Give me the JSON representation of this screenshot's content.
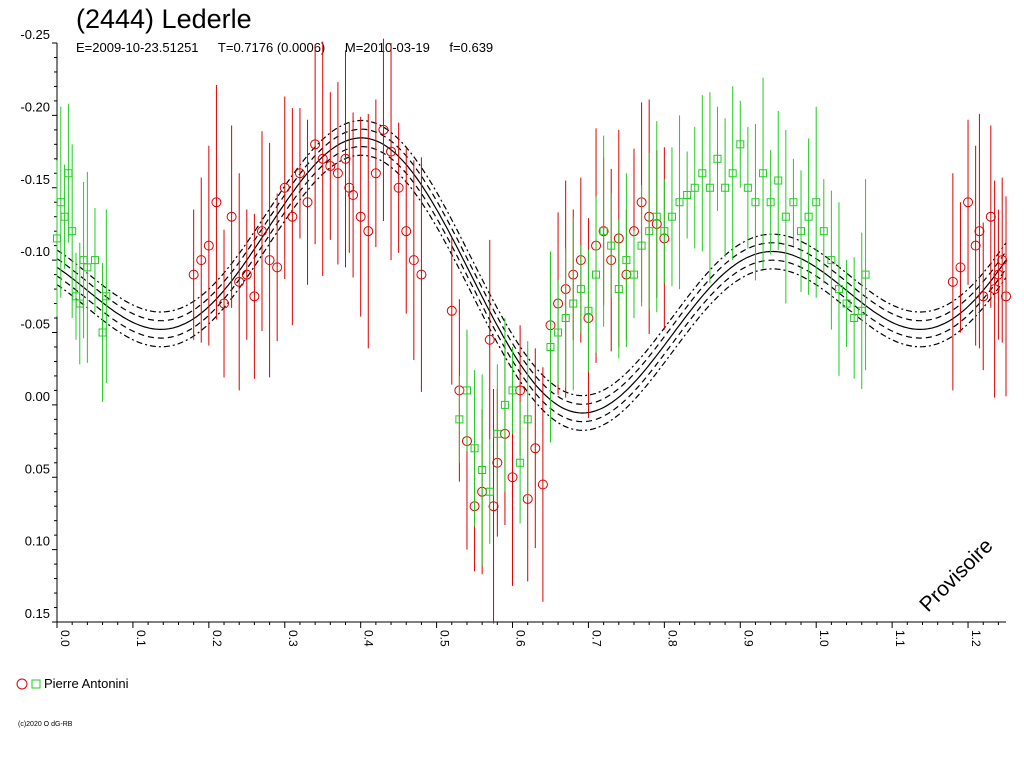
{
  "header": {
    "title": "(2444) Lederle",
    "epoch": "E=2009-10-23.51251",
    "period": "T=0.7176 (0.0006)",
    "midpoint": "M=2010-03-19",
    "fraction": "f=0.639"
  },
  "legend": {
    "label": "Pierre Antonini"
  },
  "copyright": "(c)2020 O dG-RB",
  "watermark": "Provisoire",
  "chart_data": {
    "type": "scatter",
    "title": "(2444) Lederle",
    "xlim": [
      0.0,
      1.25
    ],
    "ylim": [
      -0.25,
      0.15
    ],
    "y_inverted": true,
    "x_ticks": [
      "0.0",
      "0.1",
      "0.2",
      "0.3",
      "0.4",
      "0.5",
      "0.6",
      "0.7",
      "0.8",
      "0.9",
      "1.0",
      "1.1",
      "1.2"
    ],
    "y_ticks": [
      "-0.25",
      "-0.20",
      "-0.15",
      "-0.10",
      "-0.05",
      "0.00",
      "0.05",
      "0.10",
      "0.15"
    ],
    "colors": {
      "red_series": "#dd0000",
      "green_series": "#22cc22",
      "fit": "#000000"
    },
    "series": [
      {
        "name": "Pierre Antonini",
        "marker": "circle",
        "color": "#dd0000",
        "points": [
          [
            0.18,
            -0.09
          ],
          [
            0.19,
            -0.1
          ],
          [
            0.2,
            -0.11
          ],
          [
            0.21,
            -0.14
          ],
          [
            0.22,
            -0.07
          ],
          [
            0.23,
            -0.13
          ],
          [
            0.24,
            -0.085
          ],
          [
            0.25,
            -0.09
          ],
          [
            0.26,
            -0.075
          ],
          [
            0.27,
            -0.12
          ],
          [
            0.28,
            -0.1
          ],
          [
            0.29,
            -0.095
          ],
          [
            0.3,
            -0.15
          ],
          [
            0.31,
            -0.13
          ],
          [
            0.32,
            -0.16
          ],
          [
            0.33,
            -0.14
          ],
          [
            0.34,
            -0.18
          ],
          [
            0.35,
            -0.17
          ],
          [
            0.36,
            -0.165
          ],
          [
            0.37,
            -0.16
          ],
          [
            0.38,
            -0.17
          ],
          [
            0.385,
            -0.15
          ],
          [
            0.39,
            -0.145
          ],
          [
            0.4,
            -0.13
          ],
          [
            0.41,
            -0.12
          ],
          [
            0.42,
            -0.16
          ],
          [
            0.43,
            -0.19
          ],
          [
            0.44,
            -0.175
          ],
          [
            0.45,
            -0.15
          ],
          [
            0.46,
            -0.12
          ],
          [
            0.47,
            -0.1
          ],
          [
            0.48,
            -0.09
          ],
          [
            0.52,
            -0.065
          ],
          [
            0.53,
            -0.01
          ],
          [
            0.54,
            0.025
          ],
          [
            0.55,
            0.07
          ],
          [
            0.56,
            0.06
          ],
          [
            0.57,
            -0.045
          ],
          [
            0.575,
            0.07
          ],
          [
            0.58,
            0.04
          ],
          [
            0.59,
            0.02
          ],
          [
            0.6,
            0.05
          ],
          [
            0.61,
            -0.01
          ],
          [
            0.62,
            0.065
          ],
          [
            0.63,
            0.03
          ],
          [
            0.64,
            0.055
          ],
          [
            0.65,
            -0.055
          ],
          [
            0.66,
            -0.07
          ],
          [
            0.67,
            -0.08
          ],
          [
            0.68,
            -0.09
          ],
          [
            0.69,
            -0.1
          ],
          [
            0.7,
            -0.06
          ],
          [
            0.71,
            -0.11
          ],
          [
            0.72,
            -0.12
          ],
          [
            0.73,
            -0.1
          ],
          [
            0.74,
            -0.115
          ],
          [
            0.75,
            -0.09
          ],
          [
            0.76,
            -0.12
          ],
          [
            0.77,
            -0.14
          ],
          [
            0.78,
            -0.13
          ],
          [
            0.79,
            -0.125
          ],
          [
            0.8,
            -0.115
          ],
          [
            1.18,
            -0.085
          ],
          [
            1.19,
            -0.095
          ],
          [
            1.2,
            -0.14
          ],
          [
            1.21,
            -0.11
          ],
          [
            1.215,
            -0.12
          ],
          [
            1.22,
            -0.075
          ],
          [
            1.23,
            -0.13
          ],
          [
            1.235,
            -0.08
          ],
          [
            1.24,
            -0.09
          ],
          [
            1.245,
            -0.1
          ],
          [
            1.25,
            -0.075
          ]
        ]
      },
      {
        "name": "",
        "marker": "square",
        "color": "#22cc22",
        "points": [
          [
            0.0,
            -0.115
          ],
          [
            0.005,
            -0.14
          ],
          [
            0.01,
            -0.13
          ],
          [
            0.015,
            -0.16
          ],
          [
            0.02,
            -0.12
          ],
          [
            0.025,
            -0.075
          ],
          [
            0.03,
            -0.07
          ],
          [
            0.035,
            -0.1
          ],
          [
            0.04,
            -0.095
          ],
          [
            0.05,
            -0.1
          ],
          [
            0.06,
            -0.05
          ],
          [
            0.065,
            -0.075
          ],
          [
            0.53,
            0.01
          ],
          [
            0.54,
            -0.01
          ],
          [
            0.55,
            0.03
          ],
          [
            0.56,
            0.045
          ],
          [
            0.57,
            0.06
          ],
          [
            0.58,
            0.02
          ],
          [
            0.59,
            0.0
          ],
          [
            0.6,
            -0.01
          ],
          [
            0.61,
            0.04
          ],
          [
            0.62,
            0.01
          ],
          [
            0.65,
            -0.04
          ],
          [
            0.66,
            -0.05
          ],
          [
            0.67,
            -0.06
          ],
          [
            0.68,
            -0.07
          ],
          [
            0.69,
            -0.08
          ],
          [
            0.7,
            -0.065
          ],
          [
            0.71,
            -0.09
          ],
          [
            0.72,
            -0.12
          ],
          [
            0.73,
            -0.11
          ],
          [
            0.74,
            -0.08
          ],
          [
            0.75,
            -0.1
          ],
          [
            0.76,
            -0.09
          ],
          [
            0.77,
            -0.11
          ],
          [
            0.78,
            -0.12
          ],
          [
            0.79,
            -0.13
          ],
          [
            0.8,
            -0.12
          ],
          [
            0.81,
            -0.13
          ],
          [
            0.82,
            -0.14
          ],
          [
            0.83,
            -0.145
          ],
          [
            0.84,
            -0.15
          ],
          [
            0.85,
            -0.16
          ],
          [
            0.86,
            -0.15
          ],
          [
            0.87,
            -0.17
          ],
          [
            0.88,
            -0.15
          ],
          [
            0.89,
            -0.16
          ],
          [
            0.9,
            -0.18
          ],
          [
            0.91,
            -0.15
          ],
          [
            0.92,
            -0.14
          ],
          [
            0.93,
            -0.16
          ],
          [
            0.94,
            -0.14
          ],
          [
            0.95,
            -0.155
          ],
          [
            0.96,
            -0.13
          ],
          [
            0.97,
            -0.14
          ],
          [
            0.98,
            -0.12
          ],
          [
            0.99,
            -0.13
          ],
          [
            1.0,
            -0.14
          ],
          [
            1.01,
            -0.12
          ],
          [
            1.02,
            -0.1
          ],
          [
            1.03,
            -0.08
          ],
          [
            1.04,
            -0.07
          ],
          [
            1.05,
            -0.06
          ],
          [
            1.06,
            -0.065
          ],
          [
            1.065,
            -0.09
          ]
        ]
      }
    ],
    "fit": {
      "type": "fourier",
      "period_fraction": 1.0,
      "mean": -0.085,
      "a1": 0.02,
      "b1": -0.045,
      "a2": -0.03,
      "b2": 0.05,
      "uncertainty_bands": [
        0.006,
        0.012
      ]
    }
  }
}
